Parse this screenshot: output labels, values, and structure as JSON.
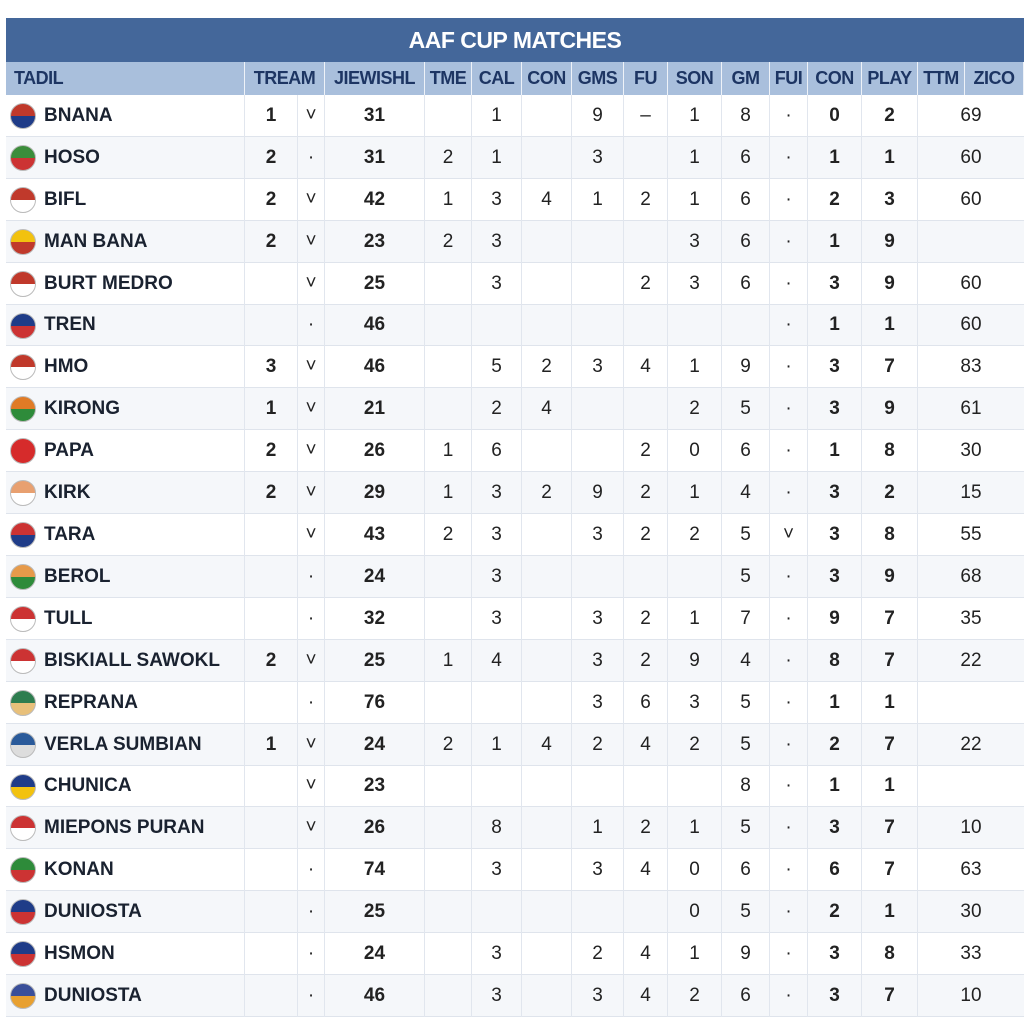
{
  "title": "AAF CUP MATCHES",
  "table": {
    "header": [
      "TADIL",
      "TREAM",
      "JIEWISHL",
      "TME",
      "CAL",
      "CON",
      "GMS",
      "FU",
      "SON",
      "GM",
      "FUI",
      "CON",
      "PLAY",
      "TTM",
      "ZICO"
    ],
    "rows": [
      [
        "BNANA",
        1,
        "˅",
        31,
        null,
        1,
        null,
        9,
        "–",
        1,
        8,
        "·",
        0,
        2,
        69
      ],
      [
        "HOSO",
        2,
        "·",
        31,
        2,
        1,
        null,
        3,
        null,
        1,
        6,
        "·",
        1,
        1,
        60
      ],
      [
        "BIFL",
        2,
        "˅",
        42,
        1,
        3,
        4,
        1,
        2,
        1,
        6,
        "·",
        2,
        3,
        60
      ],
      [
        "MAN BANA",
        2,
        "˅",
        23,
        2,
        3,
        null,
        null,
        null,
        3,
        6,
        "·",
        1,
        9,
        null
      ],
      [
        "BURT MEDRO",
        null,
        "˅",
        25,
        null,
        3,
        null,
        null,
        2,
        3,
        6,
        "·",
        3,
        9,
        60
      ],
      [
        "TREN",
        null,
        "·",
        46,
        null,
        null,
        null,
        null,
        null,
        null,
        null,
        "·",
        1,
        1,
        60
      ],
      [
        "HMO",
        3,
        "˅",
        46,
        null,
        5,
        2,
        3,
        4,
        1,
        9,
        "·",
        3,
        7,
        83
      ],
      [
        "KIRONG",
        1,
        "˅",
        21,
        null,
        2,
        4,
        null,
        null,
        2,
        5,
        "·",
        3,
        9,
        61
      ],
      [
        "PAPA",
        2,
        "˅",
        26,
        1,
        6,
        null,
        null,
        2,
        0,
        6,
        "·",
        1,
        8,
        30
      ],
      [
        "KIRK",
        2,
        "˅",
        29,
        1,
        3,
        2,
        9,
        2,
        1,
        4,
        "·",
        3,
        2,
        15
      ],
      [
        "TARA",
        null,
        "˅",
        43,
        2,
        3,
        null,
        3,
        2,
        2,
        5,
        "˅",
        3,
        8,
        55
      ],
      [
        "BEROL",
        null,
        "·",
        24,
        null,
        3,
        null,
        null,
        null,
        null,
        5,
        "·",
        3,
        9,
        68
      ],
      [
        "TULL",
        null,
        "·",
        32,
        null,
        3,
        null,
        3,
        2,
        1,
        7,
        "·",
        9,
        7,
        35
      ],
      [
        "BISKIALL SAWOKL",
        2,
        "˅",
        25,
        1,
        4,
        null,
        3,
        2,
        9,
        4,
        "·",
        8,
        7,
        22
      ],
      [
        "REPRANA",
        null,
        "·",
        76,
        null,
        null,
        null,
        3,
        6,
        3,
        5,
        "·",
        1,
        1,
        null
      ],
      [
        "VERLA SUMBIAN",
        1,
        "˅",
        24,
        2,
        1,
        4,
        2,
        4,
        2,
        5,
        "·",
        2,
        7,
        22
      ],
      [
        "CHUNICA",
        null,
        "˅",
        23,
        null,
        null,
        null,
        null,
        null,
        null,
        8,
        "·",
        1,
        1,
        null
      ],
      [
        "MIEPONS PURAN",
        null,
        "˅",
        26,
        null,
        8,
        null,
        1,
        2,
        1,
        5,
        "·",
        3,
        7,
        10
      ],
      [
        "KONAN",
        null,
        "·",
        74,
        null,
        3,
        null,
        3,
        4,
        0,
        6,
        "·",
        6,
        7,
        63
      ],
      [
        "DUNIOSTA",
        null,
        "·",
        25,
        null,
        null,
        null,
        null,
        null,
        0,
        5,
        "·",
        2,
        1,
        30
      ],
      [
        "HSMON",
        null,
        "·",
        24,
        null,
        3,
        null,
        2,
        4,
        1,
        9,
        "·",
        3,
        8,
        33
      ],
      [
        "DUNIOSTA",
        null,
        "·",
        46,
        null,
        3,
        null,
        3,
        4,
        2,
        6,
        "·",
        3,
        7,
        10
      ]
    ]
  }
}
